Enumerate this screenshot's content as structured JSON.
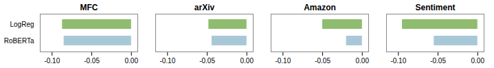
{
  "chart_data": [
    {
      "type": "bar",
      "orientation": "horizontal",
      "title": "MFC",
      "categories": [
        "LogReg",
        "RoBERTa"
      ],
      "values": [
        -0.087,
        -0.085
      ],
      "colors": [
        "#8fbc6f",
        "#a8c8d8"
      ],
      "xlim": [
        -0.115,
        0.008
      ],
      "xticks": [
        {
          "value": -0.1,
          "label": "-0.10"
        },
        {
          "value": -0.05,
          "label": "-0.05"
        },
        {
          "value": 0,
          "label": "0.00"
        }
      ]
    },
    {
      "type": "bar",
      "orientation": "horizontal",
      "title": "arXiv",
      "categories": [
        null,
        null
      ],
      "values": [
        -0.048,
        -0.044
      ],
      "colors": [
        "#8fbc6f",
        "#a8c8d8"
      ],
      "xlim": [
        -0.115,
        0.008
      ],
      "xticks": [
        {
          "value": -0.1,
          "label": "-0.10"
        },
        {
          "value": -0.05,
          "label": "-0.05"
        },
        {
          "value": 0,
          "label": "0.00"
        }
      ]
    },
    {
      "type": "bar",
      "orientation": "horizontal",
      "title": "Amazon",
      "categories": [
        null,
        null
      ],
      "values": [
        -0.05,
        -0.02
      ],
      "colors": [
        "#8fbc6f",
        "#a8c8d8"
      ],
      "xlim": [
        -0.115,
        0.008
      ],
      "xticks": [
        {
          "value": -0.1,
          "label": "-0.10"
        },
        {
          "value": -0.05,
          "label": "-0.05"
        },
        {
          "value": 0,
          "label": "0.00"
        }
      ]
    },
    {
      "type": "bar",
      "orientation": "horizontal",
      "title": "Sentiment",
      "categories": [
        null,
        null
      ],
      "values": [
        -0.095,
        -0.055
      ],
      "colors": [
        "#8fbc6f",
        "#a8c8d8"
      ],
      "xlim": [
        -0.115,
        0.008
      ],
      "xticks": [
        {
          "value": -0.1,
          "label": "-0.10"
        },
        {
          "value": -0.05,
          "label": "-0.05"
        },
        {
          "value": 0,
          "label": "0.00"
        }
      ]
    }
  ]
}
